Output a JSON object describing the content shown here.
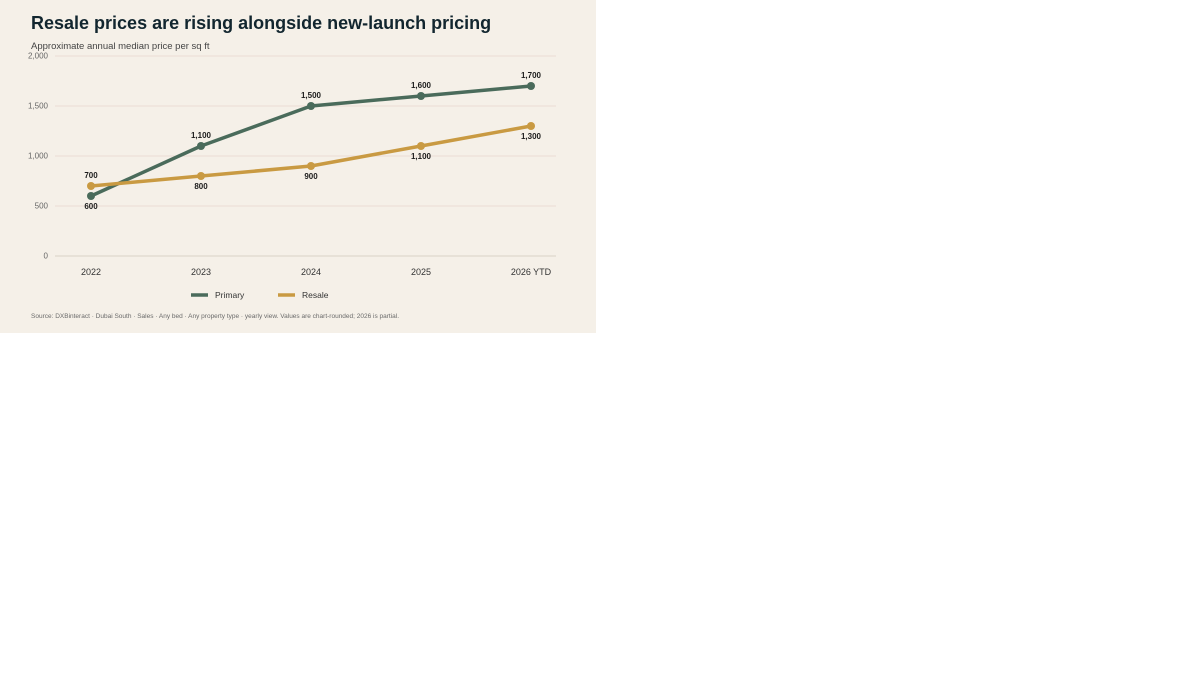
{
  "title": "Resale prices are rising alongside new-launch pricing",
  "subtitle": "Approximate annual median price per sq ft",
  "source": "Source: DXBinteract · Dubai South · Sales · Any bed · Any property type · yearly view. Values are chart-rounded; 2026 is partial.",
  "chart_data": {
    "type": "line",
    "title": "Resale prices are rising alongside new-launch pricing",
    "subtitle": "Approximate annual median price per sq ft",
    "xlabel": "",
    "ylabel": "",
    "categories": [
      "2022",
      "2023",
      "2024",
      "2025",
      "2026 YTD"
    ],
    "ylim": [
      0,
      2000
    ],
    "yticks": [
      0,
      500,
      1000,
      1500,
      2000
    ],
    "ytick_labels": [
      "0",
      "500",
      "1,000",
      "1,500",
      "2,000"
    ],
    "grid": true,
    "legend": "bottom",
    "series": [
      {
        "name": "Primary",
        "color": "#4a6b5b",
        "values": [
          600,
          1100,
          1500,
          1600,
          1700
        ],
        "labels": [
          "600",
          "1,100",
          "1,500",
          "1,600",
          "1,700"
        ]
      },
      {
        "name": "Resale",
        "color": "#c99a42",
        "values": [
          700,
          800,
          900,
          1100,
          1300
        ],
        "labels": [
          "700",
          "800",
          "900",
          "1,100",
          "1,300"
        ]
      }
    ]
  }
}
